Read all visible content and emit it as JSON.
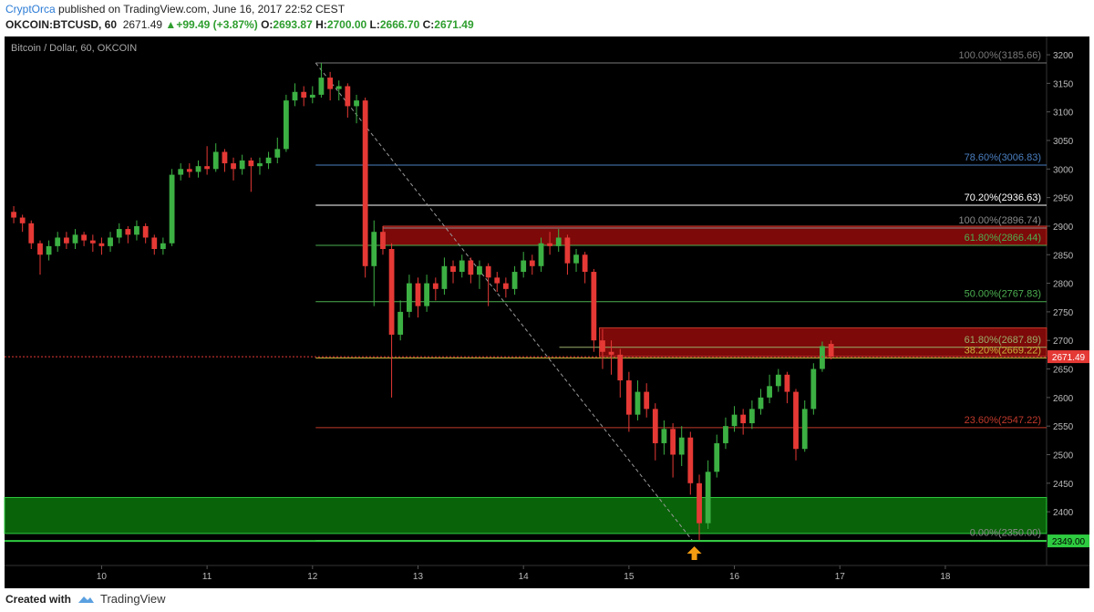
{
  "header": {
    "author": "CryptOrca",
    "published": "published on TradingView.com, June 16, 2017 22:52 CEST",
    "symbol": "OKCOIN:BTCUSD, 60",
    "last": "2671.49",
    "arrow": "▲",
    "change": "+99.49 (+3.87%)",
    "o_label": "O:",
    "o": "2693.87",
    "h_label": "H:",
    "h": "2700.00",
    "l_label": "L:",
    "l": "2666.70",
    "c_label": "C:",
    "c": "2671.49"
  },
  "footer": {
    "created": "Created with",
    "brand": "TradingView"
  },
  "chart_data": {
    "type": "candlestick",
    "title": "Bitcoin / Dollar, 60, OKCOIN",
    "up_color": "#3cb043",
    "down_color": "#e53935",
    "x": [
      9.167,
      9.25,
      9.333,
      9.417,
      9.5,
      9.583,
      9.667,
      9.75,
      9.833,
      9.917,
      10,
      10.083,
      10.167,
      10.25,
      10.333,
      10.417,
      10.5,
      10.583,
      10.667,
      10.75,
      10.833,
      10.917,
      11,
      11.083,
      11.167,
      11.25,
      11.333,
      11.417,
      11.5,
      11.583,
      11.667,
      11.75,
      11.833,
      11.917,
      12,
      12.083,
      12.167,
      12.25,
      12.333,
      12.417,
      12.5,
      12.583,
      12.667,
      12.75,
      12.833,
      12.917,
      13,
      13.083,
      13.167,
      13.25,
      13.333,
      13.417,
      13.5,
      13.583,
      13.667,
      13.75,
      13.833,
      13.917,
      14,
      14.083,
      14.167,
      14.25,
      14.333,
      14.417,
      14.5,
      14.583,
      14.667,
      14.75,
      14.833,
      14.917,
      15,
      15.083,
      15.167,
      15.25,
      15.333,
      15.417,
      15.5,
      15.583,
      15.667,
      15.75,
      15.833,
      15.917,
      16,
      16.083,
      16.167,
      16.25,
      16.333,
      16.417,
      16.5,
      16.583,
      16.667,
      16.75,
      16.833,
      16.917
    ],
    "open": [
      2925,
      2915,
      2905,
      2870,
      2850,
      2865,
      2880,
      2870,
      2885,
      2875,
      2870,
      2865,
      2880,
      2895,
      2885,
      2900,
      2880,
      2860,
      2870,
      2990,
      3000,
      2995,
      3005,
      3000,
      3030,
      3010,
      3000,
      3015,
      3005,
      3010,
      3020,
      3035,
      3120,
      3135,
      3125,
      3130,
      3160,
      3140,
      3145,
      3110,
      3120,
      2830,
      2890,
      2860,
      2710,
      2750,
      2800,
      2760,
      2800,
      2790,
      2830,
      2820,
      2840,
      2815,
      2830,
      2810,
      2800,
      2790,
      2820,
      2840,
      2830,
      2870,
      2865,
      2880,
      2835,
      2850,
      2820,
      2700,
      2680,
      2675,
      2630,
      2570,
      2610,
      2580,
      2520,
      2545,
      2500,
      2530,
      2450,
      2380,
      2470,
      2520,
      2550,
      2570,
      2555,
      2580,
      2600,
      2620,
      2640,
      2610,
      2510,
      2580,
      2650,
      2693.87
    ],
    "high": [
      2935,
      2920,
      2910,
      2875,
      2875,
      2890,
      2890,
      2895,
      2890,
      2885,
      2880,
      2890,
      2905,
      2900,
      2910,
      2905,
      2885,
      2880,
      3000,
      3010,
      3010,
      3015,
      3040,
      3045,
      3035,
      3020,
      3025,
      3020,
      3020,
      3030,
      3055,
      3130,
      3150,
      3145,
      3145,
      3185.66,
      3170,
      3155,
      3150,
      3130,
      3125,
      2910,
      2900,
      2870,
      2770,
      2815,
      2810,
      2815,
      2810,
      2845,
      2840,
      2850,
      2845,
      2840,
      2835,
      2820,
      2810,
      2830,
      2855,
      2850,
      2880,
      2890,
      2895,
      2885,
      2860,
      2855,
      2825,
      2720,
      2700,
      2685,
      2645,
      2630,
      2625,
      2590,
      2560,
      2555,
      2550,
      2540,
      2465,
      2490,
      2535,
      2565,
      2585,
      2580,
      2595,
      2615,
      2640,
      2650,
      2645,
      2615,
      2595,
      2660,
      2698,
      2700
    ],
    "low": [
      2905,
      2890,
      2860,
      2815,
      2840,
      2855,
      2860,
      2860,
      2865,
      2855,
      2850,
      2855,
      2870,
      2870,
      2875,
      2870,
      2850,
      2850,
      2865,
      2980,
      2985,
      2985,
      2990,
      2995,
      2995,
      2980,
      2990,
      2960,
      2990,
      3000,
      3010,
      3030,
      3110,
      3110,
      3115,
      3125,
      3120,
      3120,
      3090,
      3080,
      2810,
      2760,
      2850,
      2600,
      2700,
      2740,
      2740,
      2750,
      2770,
      2780,
      2800,
      2810,
      2800,
      2790,
      2760,
      2785,
      2775,
      2780,
      2810,
      2815,
      2820,
      2850,
      2855,
      2815,
      2820,
      2800,
      2680,
      2650,
      2640,
      2600,
      2540,
      2560,
      2565,
      2490,
      2500,
      2460,
      2480,
      2430,
      2350,
      2370,
      2460,
      2510,
      2540,
      2535,
      2545,
      2570,
      2590,
      2610,
      2590,
      2490,
      2505,
      2570,
      2645,
      2666.7
    ],
    "close": [
      2915,
      2905,
      2870,
      2850,
      2865,
      2880,
      2870,
      2885,
      2875,
      2870,
      2865,
      2880,
      2895,
      2885,
      2900,
      2880,
      2860,
      2870,
      2990,
      3000,
      2995,
      3005,
      3000,
      3030,
      3010,
      3000,
      3015,
      3005,
      3010,
      3020,
      3035,
      3120,
      3135,
      3125,
      3130,
      3160,
      3140,
      3145,
      3110,
      3120,
      2830,
      2890,
      2860,
      2710,
      2750,
      2800,
      2760,
      2800,
      2790,
      2830,
      2820,
      2840,
      2815,
      2830,
      2810,
      2800,
      2790,
      2820,
      2840,
      2830,
      2870,
      2865,
      2880,
      2835,
      2850,
      2820,
      2700,
      2680,
      2675,
      2630,
      2570,
      2610,
      2580,
      2520,
      2545,
      2500,
      2530,
      2450,
      2380,
      2470,
      2520,
      2550,
      2570,
      2555,
      2580,
      2600,
      2620,
      2640,
      2610,
      2510,
      2580,
      2650,
      2690,
      2671.49
    ],
    "xlim": [
      9.08,
      18.96
    ],
    "xticks": [
      10,
      11,
      12,
      13,
      14,
      15,
      16,
      17,
      18
    ],
    "ylim": [
      2306,
      3232
    ],
    "yticks": [
      2400,
      2450,
      2500,
      2550,
      2600,
      2650,
      2700,
      2750,
      2800,
      2850,
      2900,
      2950,
      3000,
      3050,
      3100,
      3150,
      3200
    ],
    "zones": [
      {
        "from": 12.67,
        "y": [
          2866.44,
          2900
        ],
        "color": "#8b0a0a"
      },
      {
        "from": 14.72,
        "y": [
          2672,
          2722
        ],
        "color": "#8b0a0a"
      },
      {
        "from": 9.08,
        "y": [
          2362,
          2425
        ],
        "color": "#0a6e0a"
      }
    ],
    "levels": [
      {
        "label": "100.00%(3185.66)",
        "value": 3185.66,
        "color": "#7a7a7a",
        "from": 12.03
      },
      {
        "label": "78.60%(3006.83)",
        "value": 3006.83,
        "color": "#4a7fc1",
        "from": 12.03
      },
      {
        "label": "70.20%(2936.63)",
        "value": 2936.63,
        "color": "#ffffff",
        "from": 12.03
      },
      {
        "label": "100.00%(2896.74)",
        "value": 2896.74,
        "color": "#8a8a8a",
        "from": 12.67
      },
      {
        "label": "61.80%(2866.44)",
        "value": 2866.44,
        "color": "#4caf50",
        "from": 12.03
      },
      {
        "label": "50.00%(2767.83)",
        "value": 2767.83,
        "color": "#4caf50",
        "from": 12.03
      },
      {
        "label": "61.80%(2687.89)",
        "value": 2687.89,
        "color": "#9aae6a",
        "from": 14.34
      },
      {
        "label": "38.20%(2669.22)",
        "value": 2669.22,
        "color": "#c9b23a",
        "from": 12.03
      },
      {
        "label": "23.60%(2547.22)",
        "value": 2547.22,
        "color": "#c0392b",
        "from": 12.03
      },
      {
        "label": "0.00%(2350.00)",
        "value": 2350,
        "color": "#8a8a8a",
        "from": 12.03
      }
    ],
    "trend_line": {
      "x": [
        12.03,
        15.6
      ],
      "y": [
        3185.66,
        2350
      ],
      "color": "#9a9a9a"
    },
    "price_lines": [
      {
        "value": 2671.49,
        "label": "2671.49",
        "color": "#e53935"
      },
      {
        "value": 2349,
        "label": "2349.00",
        "color": "#2ecc40"
      }
    ],
    "marker": {
      "x": 15.62,
      "color": "#f39c12"
    }
  }
}
